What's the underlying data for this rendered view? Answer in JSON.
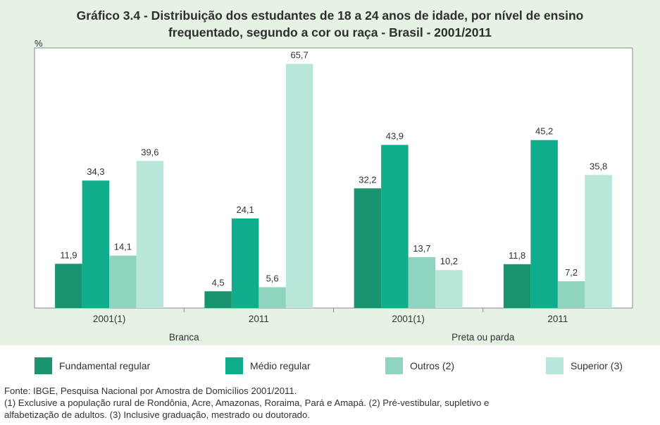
{
  "title_lines": [
    "Gráfico 3.4 - Distribuição dos estudantes de 18 a 24 anos de idade, por nível de ensino",
    "frequentado, segundo a cor ou raça - Brasil - 2001/2011"
  ],
  "y_unit": "%",
  "chart_data": {
    "type": "bar",
    "title": "Gráfico 3.4 - Distribuição dos estudantes de 18 a 24 anos de idade, por nível de ensino frequentado, segundo a cor ou raça - Brasil - 2001/2011",
    "ylabel": "%",
    "ylim": [
      0,
      70
    ],
    "grid": false,
    "legend_position": "bottom",
    "categories": [
      "2001(1)",
      "2011",
      "2001(1)",
      "2011"
    ],
    "groups": [
      {
        "label": "Branca",
        "categories": [
          "2001(1)",
          "2011"
        ]
      },
      {
        "label": "Preta ou parda",
        "categories": [
          "2001(1)",
          "2011"
        ]
      }
    ],
    "series": [
      {
        "name": "Fundamental regular",
        "color": "#1a9470",
        "values": [
          11.9,
          4.5,
          32.2,
          11.8
        ],
        "labels": [
          "11,9",
          "4,5",
          "32,2",
          "11,8"
        ]
      },
      {
        "name": "Médio regular",
        "color": "#0fad8c",
        "values": [
          34.3,
          24.1,
          43.9,
          45.2
        ],
        "labels": [
          "34,3",
          "24,1",
          "43,9",
          "45,2"
        ]
      },
      {
        "name": "Outros (2)",
        "color": "#8fd4c0",
        "values": [
          14.1,
          5.6,
          13.7,
          7.2
        ],
        "labels": [
          "14,1",
          "5,6",
          "13,7",
          "7,2"
        ]
      },
      {
        "name": "Superior (3)",
        "color": "#b9e6da",
        "values": [
          39.6,
          65.7,
          10.2,
          35.8
        ],
        "labels": [
          "39,6",
          "65,7",
          "10,2",
          "35,8"
        ]
      }
    ]
  },
  "notes": [
    "Fonte: IBGE, Pesquisa Nacional por Amostra de Domicílios 2001/2011.",
    "(1) Exclusive a população rural de Rondônia, Acre, Amazonas, Roraima, Pará e Amapá. (2) Pré-vestibular, supletivo e",
    "alfabetização de adultos. (3) Inclusive graduação, mestrado ou doutorado."
  ]
}
